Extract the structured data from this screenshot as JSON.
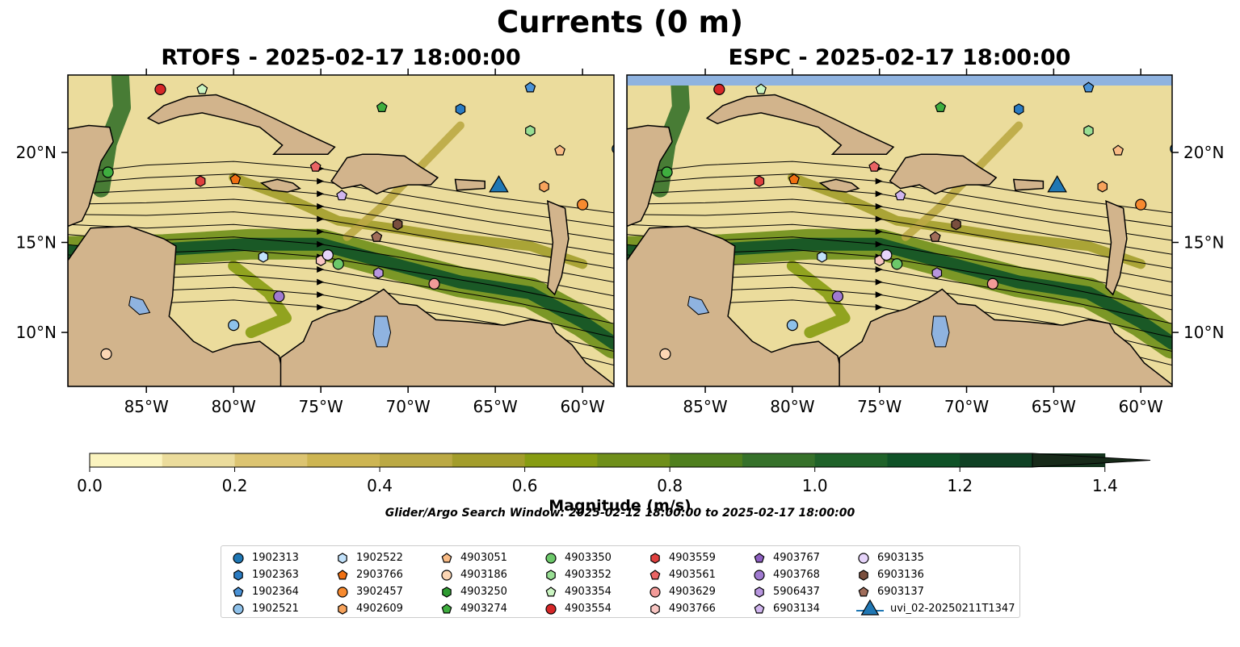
{
  "suptitle": "Currents (0 m)",
  "panels": [
    {
      "title": "RTOFS - 2025-02-17 18:00:00",
      "has_top_band": false
    },
    {
      "title": "ESPC - 2025-02-17 18:00:00",
      "has_top_band": true
    }
  ],
  "map": {
    "lon_range": [
      -89.5,
      -58.2
    ],
    "lat_range": [
      7.0,
      24.3
    ],
    "lon_ticks": [
      "85°W",
      "80°W",
      "75°W",
      "70°W",
      "65°W",
      "60°W"
    ],
    "lon_tick_values": [
      -85,
      -80,
      -75,
      -70,
      -65,
      -60
    ],
    "lat_ticks": [
      "20°N",
      "15°N",
      "10°N"
    ],
    "lat_tick_values": [
      20,
      15,
      10
    ],
    "land_color": "#d2b48c",
    "water_body_color": "#8fb3e0"
  },
  "colorbar": {
    "label": "Magnitude (m/s)",
    "min": 0.0,
    "max": 1.5,
    "step": 0.1,
    "tick_labels": [
      "0.0",
      "0.2",
      "0.4",
      "0.6",
      "0.8",
      "1.0",
      "1.2",
      "1.4"
    ],
    "tick_values": [
      0.0,
      0.2,
      0.4,
      0.6,
      0.8,
      1.0,
      1.2,
      1.4
    ],
    "colors": [
      "#fbf4bf",
      "#ebdc9c",
      "#dcc471",
      "#cdb552",
      "#bba944",
      "#a39d2b",
      "#879c12",
      "#6f8f1a",
      "#4f7f1e",
      "#36712a",
      "#1f6229",
      "#0f5227",
      "#0f4124",
      "#15341e",
      "#172a19"
    ],
    "extend": "max"
  },
  "window_note": "Glider/Argo Search Window: 2025-02-12 18:00:00 to 2025-02-17 18:00:00",
  "legend": [
    {
      "label": "1902313",
      "marker": "circle",
      "color": "#1f77b4"
    },
    {
      "label": "1902363",
      "marker": "hexagon",
      "color": "#2a7bc2"
    },
    {
      "label": "1902364",
      "marker": "pentagon",
      "color": "#4a92d6"
    },
    {
      "label": "1902521",
      "marker": "circle",
      "color": "#8ec1ea"
    },
    {
      "label": "1902522",
      "marker": "hexagon",
      "color": "#c2e2fb"
    },
    {
      "label": "2903766",
      "marker": "pentagon",
      "color": "#f07012"
    },
    {
      "label": "3902457",
      "marker": "circle",
      "color": "#f78a2f"
    },
    {
      "label": "4902609",
      "marker": "hexagon",
      "color": "#f7a35c"
    },
    {
      "label": "4903051",
      "marker": "pentagon",
      "color": "#f9bb85"
    },
    {
      "label": "4903186",
      "marker": "circle",
      "color": "#fcd6b4"
    },
    {
      "label": "4903250",
      "marker": "hexagon",
      "color": "#2e9b31"
    },
    {
      "label": "4903274",
      "marker": "pentagon",
      "color": "#3fae3f"
    },
    {
      "label": "4903350",
      "marker": "circle",
      "color": "#6cc86a"
    },
    {
      "label": "4903352",
      "marker": "hexagon",
      "color": "#98de93"
    },
    {
      "label": "4903354",
      "marker": "pentagon",
      "color": "#cbf5c2"
    },
    {
      "label": "4903554",
      "marker": "circle",
      "color": "#d62728"
    },
    {
      "label": "4903559",
      "marker": "hexagon",
      "color": "#e0403f"
    },
    {
      "label": "4903561",
      "marker": "pentagon",
      "color": "#ea6464"
    },
    {
      "label": "4903629",
      "marker": "circle",
      "color": "#f29a98"
    },
    {
      "label": "4903766",
      "marker": "hexagon",
      "color": "#f8c5c2"
    },
    {
      "label": "4903767",
      "marker": "pentagon",
      "color": "#8d5fc1"
    },
    {
      "label": "4903768",
      "marker": "circle",
      "color": "#a07ad0"
    },
    {
      "label": "5906437",
      "marker": "hexagon",
      "color": "#b896df"
    },
    {
      "label": "6903134",
      "marker": "pentagon",
      "color": "#d0b5ee"
    },
    {
      "label": "6903135",
      "marker": "circle",
      "color": "#e6d4fa"
    },
    {
      "label": "6903136",
      "marker": "hexagon",
      "color": "#7a4f3e"
    },
    {
      "label": "6903137",
      "marker": "pentagon",
      "color": "#a06d5a"
    },
    {
      "label": "uvi_02-20250211T1347",
      "marker": "triangle",
      "color": "#1f77b4"
    }
  ],
  "chart_data": {
    "type": "map",
    "title": "Currents (0 m)",
    "subplots": [
      "RTOFS - 2025-02-17 18:00:00",
      "ESPC - 2025-02-17 18:00:00"
    ],
    "xlabel": "",
    "ylabel": "",
    "xlim": [
      -89.5,
      -58.2
    ],
    "ylim": [
      7.0,
      24.3
    ],
    "colorbar_label": "Magnitude (m/s)",
    "colorbar_range": [
      0.0,
      1.5
    ],
    "points": [
      {
        "id": "1902313",
        "lon": -58.0,
        "lat": 20.2
      },
      {
        "id": "1902363",
        "lon": -67.0,
        "lat": 22.4
      },
      {
        "id": "1902364",
        "lon": -63.0,
        "lat": 23.6
      },
      {
        "id": "1902521",
        "lon": -80.0,
        "lat": 10.4
      },
      {
        "id": "1902522",
        "lon": -78.3,
        "lat": 14.2
      },
      {
        "id": "2903766",
        "lon": -79.9,
        "lat": 18.5
      },
      {
        "id": "3902457",
        "lon": -60.0,
        "lat": 17.1
      },
      {
        "id": "4902609",
        "lon": -62.2,
        "lat": 18.1
      },
      {
        "id": "4903051",
        "lon": -61.3,
        "lat": 20.1
      },
      {
        "id": "4903186",
        "lon": -87.3,
        "lat": 8.8
      },
      {
        "id": "4903250",
        "lon": -74.0,
        "lat": 13.8
      },
      {
        "id": "4903274",
        "lon": -71.5,
        "lat": 22.5
      },
      {
        "id": "4903350",
        "lon": -74.0,
        "lat": 13.8
      },
      {
        "id": "4903352",
        "lon": -63.0,
        "lat": 21.2
      },
      {
        "id": "4903354",
        "lon": -81.8,
        "lat": 23.5
      },
      {
        "id": "4903554",
        "lon": -84.2,
        "lat": 23.5
      },
      {
        "id": "4903559",
        "lon": -81.9,
        "lat": 18.4
      },
      {
        "id": "4903561",
        "lon": -75.3,
        "lat": 19.2
      },
      {
        "id": "4903629",
        "lon": -68.5,
        "lat": 12.7
      },
      {
        "id": "4903766",
        "lon": -75.0,
        "lat": 14.0
      },
      {
        "id": "4903767",
        "lon": -71.8,
        "lat": 15.3
      },
      {
        "id": "4903768",
        "lon": -77.4,
        "lat": 12.0
      },
      {
        "id": "5906437",
        "lon": -71.7,
        "lat": 13.3
      },
      {
        "id": "6903134",
        "lon": -73.8,
        "lat": 17.6
      },
      {
        "id": "6903135",
        "lon": -74.6,
        "lat": 14.3
      },
      {
        "id": "6903136",
        "lon": -70.6,
        "lat": 16.0
      },
      {
        "id": "6903137",
        "lon": -71.8,
        "lat": 15.3
      },
      {
        "id": "4903229",
        "lon": -87.2,
        "lat": 18.9
      },
      {
        "id": "uvi_02-20250211T1347",
        "lon": -64.8,
        "lat": 18.1
      }
    ]
  }
}
